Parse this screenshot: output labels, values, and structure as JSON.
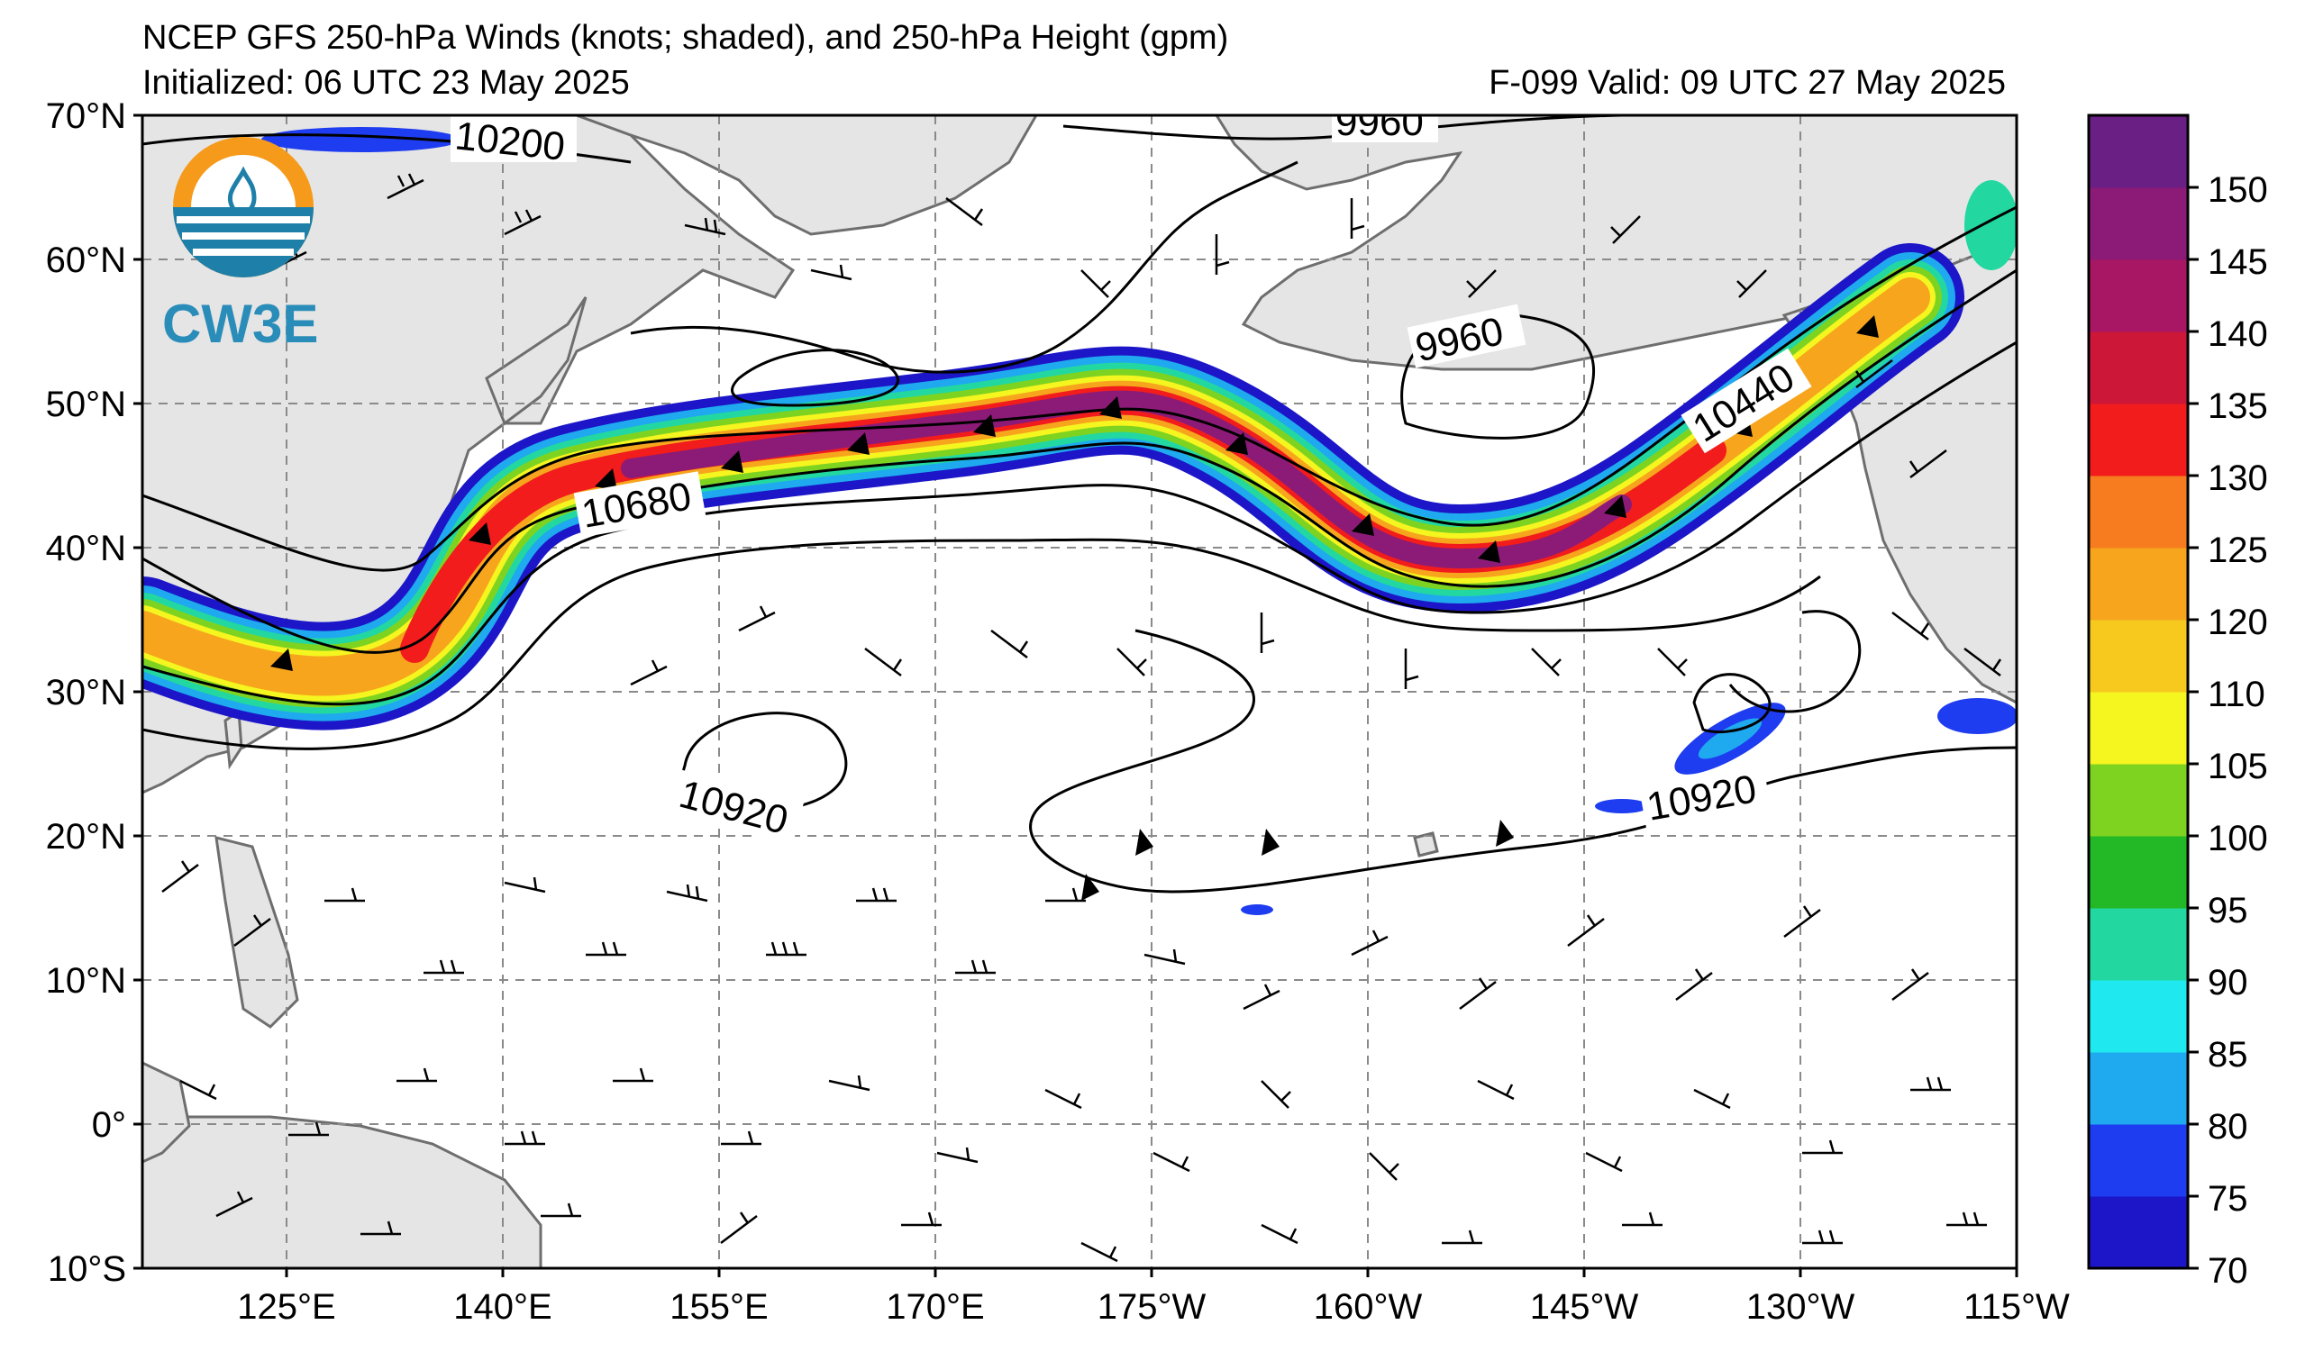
{
  "header": {
    "title": "NCEP GFS 250-hPa Winds (knots; shaded), and 250-hPa Height (gpm)",
    "initialized": "Initialized: 06 UTC 23 May 2025",
    "valid": "F-099  Valid: 09 UTC 27 May 2025"
  },
  "logo": {
    "text": "CW3E"
  },
  "map": {
    "lat_labels": [
      "70°N",
      "60°N",
      "50°N",
      "40°N",
      "30°N",
      "20°N",
      "10°N",
      "0°",
      "10°S"
    ],
    "lon_labels": [
      "125°E",
      "140°E",
      "155°E",
      "170°E",
      "175°W",
      "160°W",
      "145°W",
      "130°W",
      "115°W"
    ],
    "contour_labels": [
      "10200",
      "9960",
      "9960",
      "10680",
      "10440",
      "10920",
      "10920"
    ]
  },
  "colorbar": {
    "ticks": [
      "70",
      "75",
      "80",
      "85",
      "90",
      "95",
      "100",
      "105",
      "110",
      "120",
      "125",
      "130",
      "135",
      "140",
      "145",
      "150"
    ],
    "colors": [
      "#1c16c8",
      "#1e3cf0",
      "#1fa9ef",
      "#1fe8ee",
      "#22d8a0",
      "#22b826",
      "#7ed321",
      "#f5f51f",
      "#f7c81e",
      "#f6a51d",
      "#f77c1f",
      "#f21c1c",
      "#cc1738",
      "#a81763",
      "#8c1b77",
      "#6a1f84"
    ]
  }
}
